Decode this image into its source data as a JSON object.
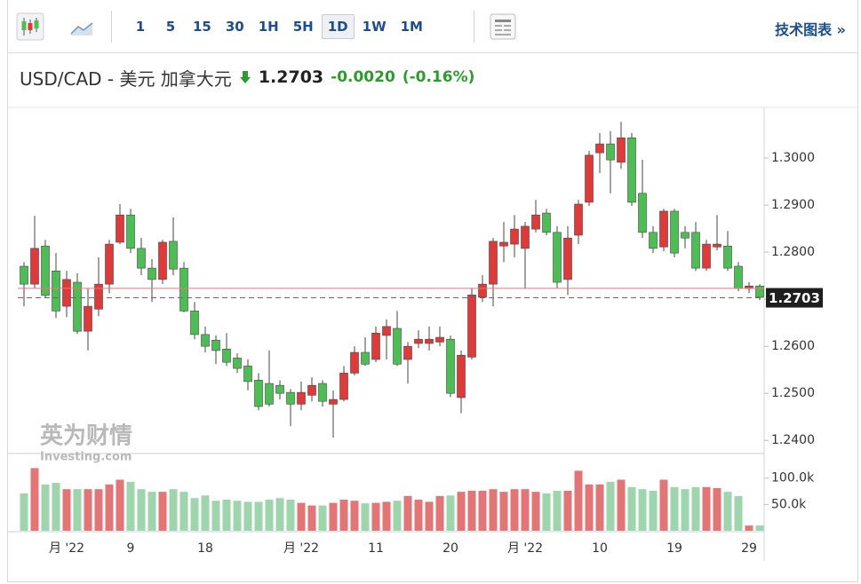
{
  "toolbar": {
    "intervals": [
      "1",
      "5",
      "15",
      "30",
      "1H",
      "5H",
      "1D",
      "1W",
      "1M"
    ],
    "selected": "1D",
    "link": "技术图表 »"
  },
  "header": {
    "symbol": "USD/CAD - 美元 加拿大元",
    "change": "-0.0020",
    "change_pct": "(-0.16%)"
  },
  "watermark": [
    "英为财情",
    "Investing.com"
  ],
  "chart_data": {
    "type": "candlestick",
    "categories": [
      null,
      null,
      null,
      null,
      "月 '22",
      null,
      null,
      null,
      null,
      null,
      "9",
      null,
      null,
      null,
      null,
      null,
      null,
      "18",
      null,
      null,
      null,
      null,
      null,
      null,
      null,
      null,
      "月 '22",
      null,
      null,
      null,
      null,
      null,
      null,
      "11",
      null,
      null,
      null,
      null,
      null,
      null,
      "20",
      null,
      null,
      null,
      null,
      null,
      null,
      "月 '22",
      null,
      null,
      null,
      null,
      null,
      null,
      "10",
      null,
      null,
      null,
      null,
      null,
      null,
      "19",
      null,
      null,
      null,
      null,
      null,
      null,
      "29",
      null
    ],
    "open": [
      1.277,
      1.2732,
      1.2813,
      1.276,
      1.2685,
      1.2736,
      1.2632,
      1.2679,
      1.2732,
      1.2821,
      1.2879,
      1.2808,
      1.2766,
      1.2742,
      1.2823,
      1.2766,
      1.2675,
      1.2625,
      1.2613,
      1.2594,
      1.2575,
      1.2558,
      1.2528,
      1.2521,
      1.2517,
      1.2502,
      1.2477,
      1.2496,
      1.2521,
      1.2477,
      1.2487,
      1.2543,
      1.2587,
      1.2572,
      1.2623,
      1.2638,
      1.2572,
      1.2606,
      1.2606,
      1.2609,
      1.2615,
      1.2491,
      1.2577,
      1.2704,
      1.2732,
      1.2813,
      1.2817,
      1.2808,
      1.2849,
      1.2883,
      1.2842,
      1.2742,
      1.2836,
      1.2906,
      1.3011,
      1.303,
      1.2991,
      1.3043,
      1.2925,
      1.2842,
      1.2811,
      1.2887,
      1.2842,
      1.2842,
      1.2766,
      1.2811,
      1.2813,
      1.277,
      1.2723,
      1.2728
    ],
    "high": [
      1.2779,
      1.2877,
      1.2826,
      1.2798,
      1.276,
      1.2755,
      1.2723,
      1.2789,
      1.2826,
      1.2902,
      1.2892,
      1.283,
      1.2785,
      1.2826,
      1.2874,
      1.2779,
      1.2694,
      1.2642,
      1.2623,
      1.2628,
      1.2585,
      1.2572,
      1.2543,
      1.2591,
      1.2528,
      1.2509,
      1.2525,
      1.2534,
      1.2528,
      1.2506,
      1.2558,
      1.26,
      1.2619,
      1.2642,
      1.2657,
      1.2675,
      1.2609,
      1.2634,
      1.2642,
      1.2642,
      1.2623,
      1.2591,
      1.2723,
      1.2751,
      1.283,
      1.2864,
      1.2879,
      1.2864,
      1.2911,
      1.2892,
      1.2855,
      1.2855,
      1.2911,
      1.3015,
      1.3053,
      1.3057,
      1.3077,
      1.3053,
      1.2996,
      1.2855,
      1.2892,
      1.2892,
      1.2855,
      1.2864,
      1.2826,
      1.2879,
      1.2845,
      1.2779,
      1.2736,
      1.2732
    ],
    "low": [
      1.2685,
      1.2723,
      1.2704,
      1.266,
      1.2662,
      1.2626,
      1.2591,
      1.2664,
      1.2713,
      1.2817,
      1.2798,
      1.2751,
      1.2694,
      1.2732,
      1.2751,
      1.2672,
      1.2615,
      1.2587,
      1.2562,
      1.2558,
      1.2543,
      1.2506,
      1.2464,
      1.2472,
      1.2487,
      1.243,
      1.2464,
      1.2483,
      1.2472,
      1.2406,
      1.2483,
      1.2538,
      1.2558,
      1.2566,
      1.2572,
      1.2558,
      1.2521,
      1.2596,
      1.2591,
      1.26,
      1.2492,
      1.2458,
      1.2572,
      1.2694,
      1.2685,
      1.2779,
      1.2789,
      1.2723,
      1.2842,
      1.2836,
      1.2723,
      1.2709,
      1.2817,
      1.2898,
      1.2968,
      1.2925,
      1.2977,
      1.2898,
      1.283,
      1.2798,
      1.2802,
      1.2789,
      1.2808,
      1.276,
      1.276,
      1.2804,
      1.276,
      1.2717,
      1.2713,
      1.2698
    ],
    "close": [
      1.2732,
      1.2808,
      1.2708,
      1.2675,
      1.2742,
      1.2632,
      1.2685,
      1.2732,
      1.2817,
      1.2879,
      1.2808,
      1.2766,
      1.2742,
      1.2821,
      1.2764,
      1.2675,
      1.2625,
      1.26,
      1.2591,
      1.2566,
      1.2553,
      1.2525,
      1.2472,
      1.2477,
      1.25,
      1.2477,
      1.2502,
      1.2517,
      1.2483,
      1.2487,
      1.2543,
      1.2587,
      1.2562,
      1.2628,
      1.2642,
      1.2562,
      1.26,
      1.2615,
      1.2615,
      1.2619,
      1.25,
      1.2581,
      1.2709,
      1.2732,
      1.2823,
      1.2821,
      1.2849,
      1.2855,
      1.2879,
      1.2842,
      1.2736,
      1.283,
      1.2902,
      1.3006,
      1.303,
      1.2996,
      1.3043,
      1.2906,
      1.2842,
      1.2808,
      1.2887,
      1.2798,
      1.283,
      1.2766,
      1.2817,
      1.2817,
      1.2766,
      1.2723,
      1.2728,
      1.2704
    ],
    "volume": [
      71000,
      119000,
      88000,
      91000,
      79000,
      79000,
      79000,
      79000,
      88000,
      97000,
      93000,
      79000,
      74000,
      74000,
      79000,
      74000,
      62000,
      67000,
      57000,
      59000,
      57000,
      55000,
      55000,
      59000,
      62000,
      59000,
      53000,
      48000,
      48000,
      53000,
      59000,
      57000,
      52000,
      53000,
      55000,
      57000,
      66000,
      59000,
      55000,
      66000,
      67000,
      74000,
      76000,
      76000,
      79000,
      74000,
      79000,
      79000,
      74000,
      71000,
      76000,
      76000,
      114000,
      88000,
      88000,
      93000,
      97000,
      83000,
      79000,
      76000,
      97000,
      83000,
      79000,
      83000,
      83000,
      81000,
      74000,
      66000,
      10000,
      10000
    ],
    "up_color": "#de3a3a",
    "down_color": "#4fbd55",
    "up_volume_color": "#e27676",
    "down_volume_color": "#9ed5ad",
    "ylim": [
      1.2374,
      1.31
    ],
    "yticks": [
      {
        "value": 1.24,
        "label": "1.2400"
      },
      {
        "value": 1.25,
        "label": "1.2500"
      },
      {
        "value": 1.26,
        "label": "1.2600"
      },
      {
        "value": 1.27,
        "label": "1.2700"
      },
      {
        "value": 1.28,
        "label": "1.2800"
      },
      {
        "value": 1.29,
        "label": "1.2900"
      },
      {
        "value": 1.3,
        "label": "1.3000"
      }
    ],
    "volume_lim": [
      0,
      140000
    ],
    "volume_ticks": [
      {
        "value": 100000,
        "label": "100.0k"
      },
      {
        "value": 50000,
        "label": "50.0k"
      }
    ],
    "prev_close": 1.2723,
    "price_line": {
      "value": 1.2703,
      "label": "1.2703"
    }
  }
}
